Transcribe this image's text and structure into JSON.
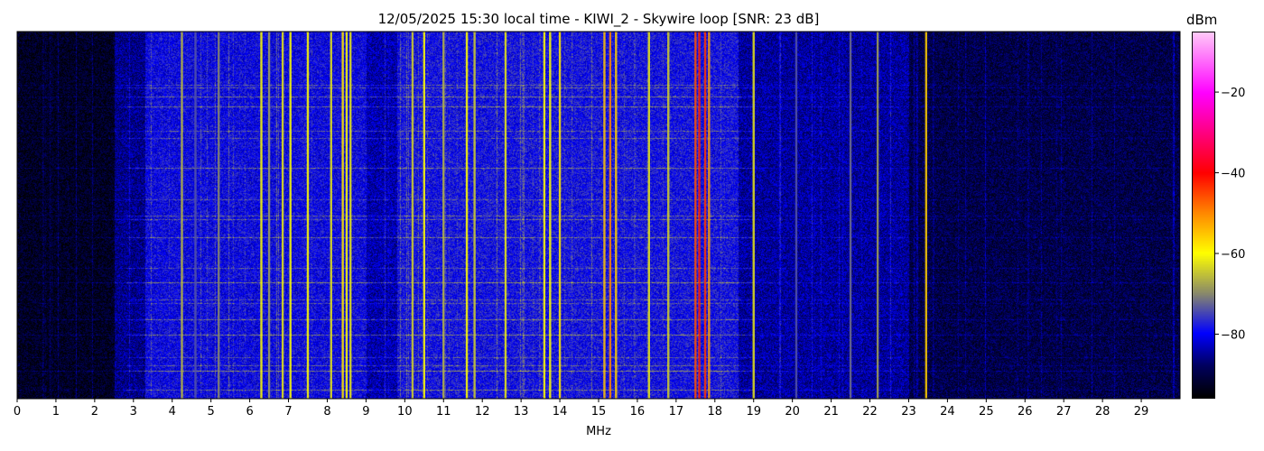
{
  "chart_data": {
    "type": "heatmap",
    "title": "12/05/2025 15:30 local time - KIWI_2 - Skywire loop [SNR: 23 dB]",
    "xlabel": "MHz",
    "ylabel": "",
    "xlim": [
      0,
      30
    ],
    "x_ticks": [
      0,
      1,
      2,
      3,
      4,
      5,
      6,
      7,
      8,
      9,
      10,
      11,
      12,
      13,
      14,
      15,
      16,
      17,
      18,
      19,
      20,
      21,
      22,
      23,
      24,
      25,
      26,
      27,
      28,
      29
    ],
    "colorbar": {
      "label": "dBm",
      "range": [
        -96,
        -5
      ],
      "ticks": [
        -20,
        -40,
        -60,
        -80
      ],
      "colormap": [
        {
          "value": -96,
          "color": "#000000"
        },
        {
          "value": -88,
          "color": "#000060"
        },
        {
          "value": -80,
          "color": "#0000ff"
        },
        {
          "value": -70,
          "color": "#8a8a6a"
        },
        {
          "value": -60,
          "color": "#ffff00"
        },
        {
          "value": -50,
          "color": "#ff8800"
        },
        {
          "value": -40,
          "color": "#ff0000"
        },
        {
          "value": -30,
          "color": "#ff0080"
        },
        {
          "value": -20,
          "color": "#ff00ff"
        },
        {
          "value": -5,
          "color": "#ffc8f8"
        }
      ]
    },
    "noise_floor": [
      {
        "from_mhz": 0,
        "to_mhz": 2.5,
        "dbm": -93
      },
      {
        "from_mhz": 2.5,
        "to_mhz": 3.3,
        "dbm": -86
      },
      {
        "from_mhz": 3.3,
        "to_mhz": 9.0,
        "dbm": -80
      },
      {
        "from_mhz": 9.0,
        "to_mhz": 9.8,
        "dbm": -84
      },
      {
        "from_mhz": 9.8,
        "to_mhz": 18.6,
        "dbm": -79
      },
      {
        "from_mhz": 18.6,
        "to_mhz": 23.0,
        "dbm": -85
      },
      {
        "from_mhz": 23.0,
        "to_mhz": 30,
        "dbm": -90
      }
    ],
    "signals": [
      {
        "mhz": 4.25,
        "dbm": -66
      },
      {
        "mhz": 4.6,
        "dbm": -74
      },
      {
        "mhz": 5.2,
        "dbm": -70
      },
      {
        "mhz": 6.3,
        "dbm": -60
      },
      {
        "mhz": 6.5,
        "dbm": -68
      },
      {
        "mhz": 6.85,
        "dbm": -62
      },
      {
        "mhz": 7.05,
        "dbm": -60
      },
      {
        "mhz": 7.5,
        "dbm": -60
      },
      {
        "mhz": 8.1,
        "dbm": -62
      },
      {
        "mhz": 8.4,
        "dbm": -58
      },
      {
        "mhz": 8.5,
        "dbm": -60
      },
      {
        "mhz": 8.6,
        "dbm": -62
      },
      {
        "mhz": 10.2,
        "dbm": -64
      },
      {
        "mhz": 10.5,
        "dbm": -60
      },
      {
        "mhz": 11.0,
        "dbm": -66
      },
      {
        "mhz": 11.6,
        "dbm": -60
      },
      {
        "mhz": 11.8,
        "dbm": -64
      },
      {
        "mhz": 12.6,
        "dbm": -62
      },
      {
        "mhz": 13.6,
        "dbm": -60
      },
      {
        "mhz": 13.75,
        "dbm": -60
      },
      {
        "mhz": 14.0,
        "dbm": -58
      },
      {
        "mhz": 15.15,
        "dbm": -55
      },
      {
        "mhz": 15.3,
        "dbm": -50
      },
      {
        "mhz": 15.45,
        "dbm": -56
      },
      {
        "mhz": 16.3,
        "dbm": -62
      },
      {
        "mhz": 16.8,
        "dbm": -64
      },
      {
        "mhz": 17.5,
        "dbm": -46
      },
      {
        "mhz": 17.6,
        "dbm": -42
      },
      {
        "mhz": 17.75,
        "dbm": -44
      },
      {
        "mhz": 17.85,
        "dbm": -52
      },
      {
        "mhz": 19.0,
        "dbm": -62
      },
      {
        "mhz": 20.1,
        "dbm": -74
      },
      {
        "mhz": 21.5,
        "dbm": -72
      },
      {
        "mhz": 22.2,
        "dbm": -68
      },
      {
        "mhz": 23.45,
        "dbm": -56
      }
    ],
    "grid": false,
    "legend": "none"
  }
}
